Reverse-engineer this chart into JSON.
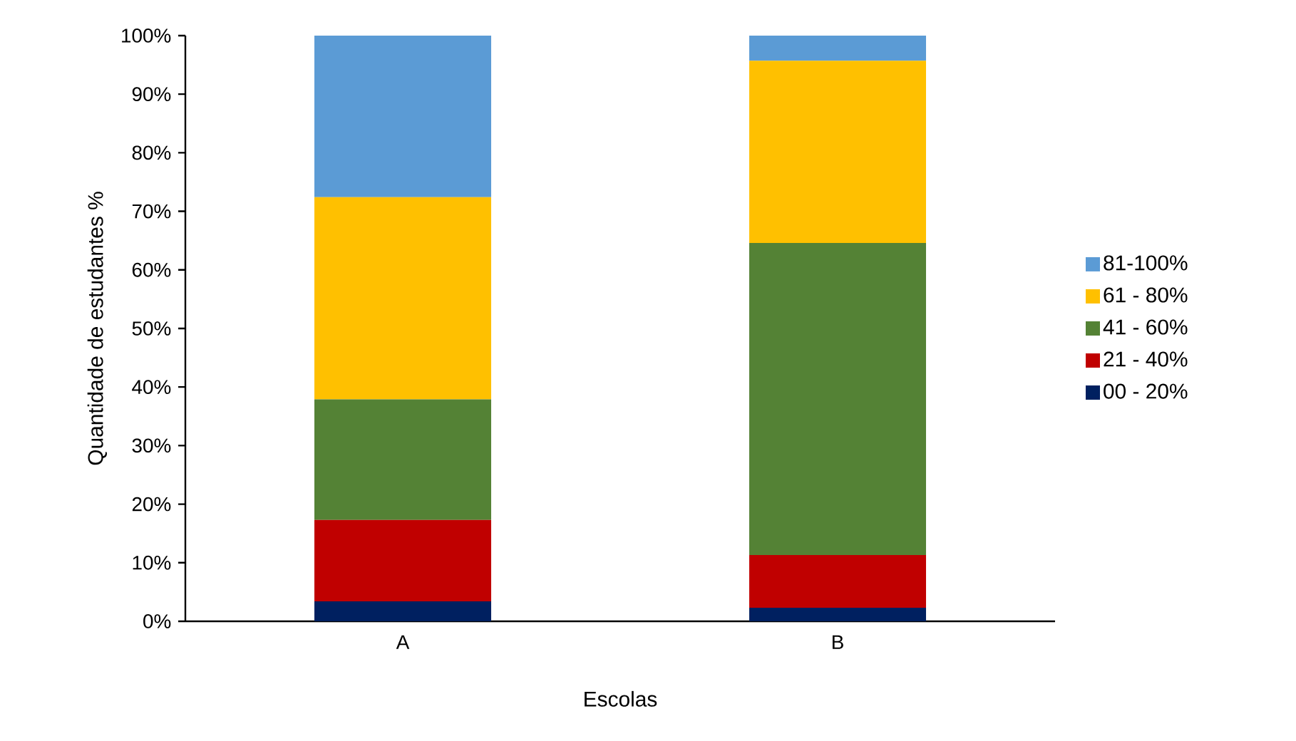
{
  "chart_data": {
    "type": "bar",
    "stacked": true,
    "xlabel": "Escolas",
    "ylabel": "Quantidade de estudantes %",
    "categories": [
      "A",
      "B"
    ],
    "series": [
      {
        "name": "00 - 20%",
        "color": "#002060",
        "values": [
          3.4,
          2.3
        ]
      },
      {
        "name": "21 - 40%",
        "color": "#c00000",
        "values": [
          13.9,
          9.0
        ]
      },
      {
        "name": "41 - 60%",
        "color": "#548235",
        "values": [
          20.6,
          53.3
        ]
      },
      {
        "name": "61 - 80%",
        "color": "#ffc000",
        "values": [
          34.5,
          31.1
        ]
      },
      {
        "name": "81-100%",
        "color": "#5b9bd5",
        "values": [
          27.6,
          4.3
        ]
      }
    ],
    "ylim": [
      0,
      100
    ],
    "yticks": [
      {
        "value": 0,
        "label": "0%"
      },
      {
        "value": 10,
        "label": "10%"
      },
      {
        "value": 20,
        "label": "20%"
      },
      {
        "value": 30,
        "label": "30%"
      },
      {
        "value": 40,
        "label": "40%"
      },
      {
        "value": 50,
        "label": "50%"
      },
      {
        "value": 60,
        "label": "60%"
      },
      {
        "value": 70,
        "label": "70%"
      },
      {
        "value": 80,
        "label": "80%"
      },
      {
        "value": 90,
        "label": "90%"
      },
      {
        "value": 100,
        "label": "100%"
      }
    ],
    "legend": "right"
  }
}
